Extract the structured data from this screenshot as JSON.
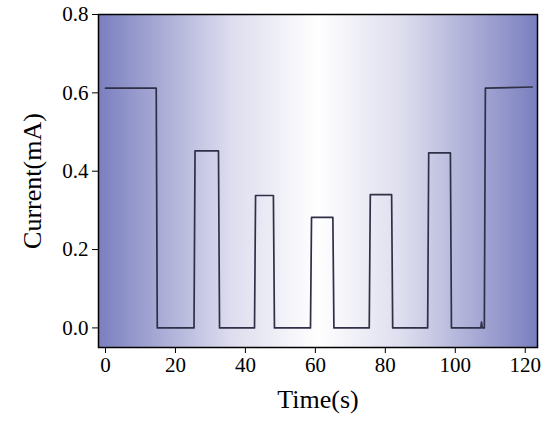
{
  "chart_data": {
    "type": "line",
    "x_label": "Time(s)",
    "y_label": "Current(mA)",
    "xlim": [
      -2,
      123.5
    ],
    "ylim": [
      -0.05,
      0.8
    ],
    "xticks": [
      0,
      20,
      40,
      60,
      80,
      100,
      120
    ],
    "yticks": [
      {
        "value": 0,
        "label": "0.0"
      },
      0.2,
      0.4,
      0.6,
      0.8
    ],
    "grid": false,
    "series": [
      {
        "name": "Current",
        "color": "#2f2f48",
        "x": [
          0,
          14.5,
          14.8,
          25.3,
          25.6,
          32.3,
          32.6,
          42.6,
          42.9,
          48,
          48.3,
          58.6,
          58.9,
          65,
          65.3,
          75.4,
          75.7,
          81.8,
          82.1,
          92.1,
          92.4,
          98.6,
          98.9,
          107.3,
          107.5,
          107.7,
          108.3,
          108.6,
          122
        ],
        "values": [
          0.612,
          0.612,
          0,
          0,
          0.452,
          0.452,
          0,
          0,
          0.338,
          0.338,
          0,
          0,
          0.282,
          0.282,
          0,
          0,
          0.34,
          0.34,
          0,
          0,
          0.447,
          0.447,
          0,
          0,
          0.015,
          0,
          0,
          0.612,
          0.615
        ]
      }
    ]
  }
}
